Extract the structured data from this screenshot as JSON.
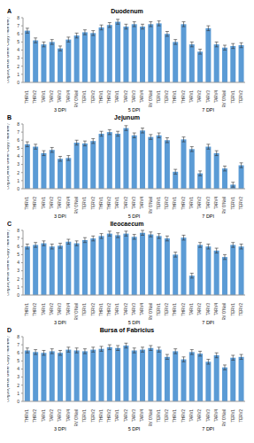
{
  "chart_data": [
    {
      "type": "bar",
      "title": "Duodenum",
      "annotations": [
        "A"
      ],
      "y_label": "Log10(Virus Gene Copy Number)",
      "categories": [
        "THRV1",
        "THRV2",
        "TARV1",
        "TARV2",
        "TARV3",
        "TARV4",
        "TARV O'Neil",
        "TERV1",
        "TERV2",
        "THRV1",
        "THRV2",
        "TARV1",
        "TARV2",
        "TARV3",
        "TARV4",
        "TARV O'Neil",
        "TERV1",
        "TERV2",
        "THRV1",
        "THRV2",
        "TARV1",
        "TARV2",
        "TARV3",
        "TARV4",
        "TARV O'Neil",
        "TERV1",
        "TERV2"
      ],
      "groups": [
        "3 DPI",
        "5 DPI",
        "7 DPI"
      ],
      "values": [
        6.4,
        5.2,
        4.7,
        5.0,
        4.2,
        5.3,
        5.8,
        6.2,
        6.1,
        6.8,
        7.1,
        7.5,
        6.9,
        7.2,
        6.9,
        7.2,
        7.3,
        6.0,
        5.0,
        7.2,
        4.7,
        3.8,
        6.7,
        4.7,
        4.3,
        4.5,
        4.6
      ],
      "errors": [
        0.3,
        0.3,
        0.3,
        0.3,
        0.3,
        0.3,
        0.3,
        0.3,
        0.3,
        0.3,
        0.3,
        0.3,
        0.3,
        0.3,
        0.3,
        0.3,
        0.3,
        0.3,
        0.3,
        0.3,
        0.3,
        0.3,
        0.3,
        0.3,
        0.3,
        0.3,
        0.3
      ],
      "color": "#5b9bd5",
      "ylim": [
        0,
        8
      ],
      "yticks": [
        0,
        1,
        2,
        3,
        4,
        5,
        6,
        7,
        8
      ],
      "grid": false
    },
    {
      "type": "bar",
      "title": "Jejunum",
      "annotations": [
        "B"
      ],
      "y_label": "Log10(Virus Gene Copy Number)",
      "categories": [
        "THRV1",
        "THRV2",
        "TARV1",
        "TARV2",
        "TARV3",
        "TARV4",
        "TARV O'Neil",
        "TERV1",
        "TERV2",
        "THRV1",
        "THRV2",
        "TARV1",
        "TARV2",
        "TARV3",
        "TARV4",
        "TARV O'Neil",
        "TERV1",
        "TERV2",
        "THRV1",
        "THRV2",
        "TARV1",
        "TARV2",
        "TARV3",
        "TARV4",
        "TARV O'Neil",
        "TERV1",
        "TERV2"
      ],
      "groups": [
        "3 DPI",
        "5 DPI",
        "7 DPI"
      ],
      "values": [
        5.5,
        5.2,
        4.4,
        4.8,
        3.7,
        3.8,
        5.7,
        5.6,
        5.9,
        6.8,
        7.0,
        6.8,
        7.5,
        6.6,
        7.2,
        6.4,
        6.6,
        6.0,
        2.1,
        6.1,
        4.9,
        1.9,
        5.2,
        4.4,
        2.5,
        0.5,
        2.9
      ],
      "errors": [
        0.3,
        0.3,
        0.3,
        0.3,
        0.3,
        0.3,
        0.3,
        0.3,
        0.3,
        0.3,
        0.3,
        0.3,
        0.3,
        0.3,
        0.3,
        0.3,
        0.3,
        0.3,
        0.3,
        0.3,
        0.3,
        0.3,
        0.3,
        0.3,
        0.3,
        0.3,
        0.3
      ],
      "color": "#5b9bd5",
      "ylim": [
        0,
        8
      ],
      "yticks": [
        0,
        1,
        2,
        3,
        4,
        5,
        6,
        7,
        8
      ],
      "grid": false
    },
    {
      "type": "bar",
      "title": "Ileocaecum",
      "annotations": [
        "C"
      ],
      "y_label": "Log10(Virus Gene Copy Number)",
      "categories": [
        "THRV1",
        "THRV2",
        "TARV1",
        "TARV2",
        "TARV3",
        "TARV4",
        "TARV O'Neil",
        "TERV1",
        "TERV2",
        "THRV1",
        "THRV2",
        "TARV1",
        "TARV2",
        "TARV3",
        "TARV4",
        "TARV O'Neil",
        "TERV1",
        "TERV2",
        "THRV1",
        "THRV2",
        "TARV1",
        "TARV2",
        "TARV3",
        "TARV4",
        "TARV O'Neil",
        "TERV1",
        "TERV2"
      ],
      "groups": [
        "3 DPI",
        "5 DPI",
        "7 DPI"
      ],
      "values": [
        6.0,
        6.2,
        6.4,
        6.0,
        6.1,
        6.6,
        6.4,
        6.8,
        7.0,
        7.3,
        7.6,
        7.4,
        7.6,
        7.2,
        7.7,
        7.5,
        7.3,
        7.0,
        5.0,
        7.1,
        2.4,
        6.2,
        6.0,
        5.5,
        4.7,
        6.2,
        6.0
      ],
      "errors": [
        0.3,
        0.3,
        0.3,
        0.3,
        0.3,
        0.3,
        0.3,
        0.3,
        0.3,
        0.3,
        0.3,
        0.3,
        0.3,
        0.3,
        0.3,
        0.3,
        0.3,
        0.3,
        0.3,
        0.3,
        0.3,
        0.3,
        0.3,
        0.3,
        0.3,
        0.3,
        0.3
      ],
      "color": "#5b9bd5",
      "ylim": [
        0,
        8
      ],
      "yticks": [
        0,
        1,
        2,
        3,
        4,
        5,
        6,
        7,
        8
      ],
      "grid": false
    },
    {
      "type": "bar",
      "title": "Bursa of Fabricius",
      "annotations": [
        "D"
      ],
      "y_label": "Log10(Virus Gene Copy Number)",
      "categories": [
        "THRV1",
        "THRV2",
        "TARV1",
        "TARV2",
        "TARV3",
        "TARV4",
        "TARV O'Neil",
        "TERV1",
        "TERV2",
        "THRV1",
        "THRV2",
        "TARV1",
        "TARV2",
        "TARV3",
        "TARV4",
        "TARV O'Neil",
        "TERV1",
        "TERV2",
        "THRV1",
        "THRV2",
        "TARV1",
        "TARV2",
        "TARV3",
        "TARV4",
        "TARV O'Neil",
        "TERV1",
        "TERV2"
      ],
      "groups": [
        "3 DPI",
        "5 DPI",
        "7 DPI"
      ],
      "values": [
        6.3,
        6.1,
        6.0,
        6.2,
        6.0,
        6.4,
        6.3,
        6.2,
        6.4,
        6.5,
        6.7,
        6.6,
        6.9,
        6.3,
        6.4,
        6.6,
        6.4,
        5.5,
        6.2,
        5.2,
        6.1,
        5.9,
        4.9,
        5.7,
        4.2,
        5.4,
        5.5
      ],
      "errors": [
        0.3,
        0.3,
        0.3,
        0.3,
        0.3,
        0.3,
        0.3,
        0.3,
        0.3,
        0.3,
        0.3,
        0.3,
        0.3,
        0.3,
        0.3,
        0.3,
        0.3,
        0.3,
        0.3,
        0.3,
        0.3,
        0.3,
        0.3,
        0.3,
        0.3,
        0.3,
        0.3
      ],
      "color": "#5b9bd5",
      "ylim": [
        0,
        8
      ],
      "yticks": [
        0,
        1,
        2,
        3,
        4,
        5,
        6,
        7,
        8
      ],
      "grid": false
    }
  ]
}
